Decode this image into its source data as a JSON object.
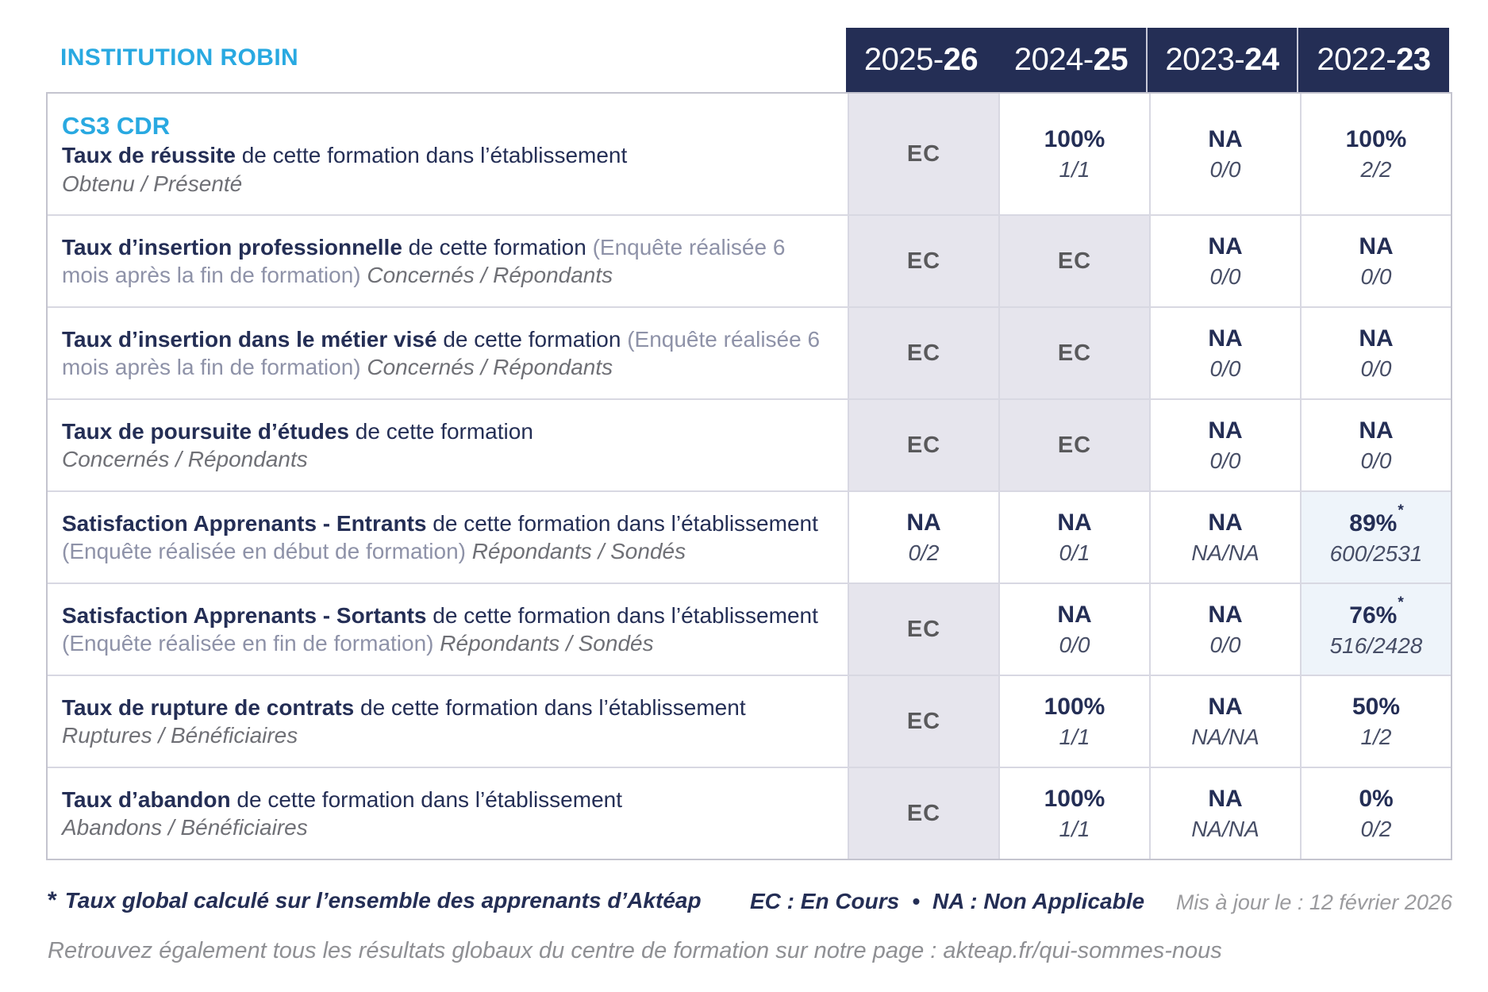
{
  "page": {
    "institution": "INSTITUTION ROBIN",
    "program": "CS3 CDR"
  },
  "header": {
    "years": [
      {
        "start": "2025-",
        "end": "26"
      },
      {
        "start": "2024-",
        "end": "25"
      },
      {
        "start": "2023-",
        "end": "24"
      },
      {
        "start": "2022-",
        "end": "23"
      }
    ]
  },
  "rows": [
    {
      "title": "Taux de réussite",
      "text": "de cette formation dans l’établissement",
      "subtitle": "Obtenu / Présenté",
      "cells": [
        {
          "main": "EC"
        },
        {
          "main": "100%",
          "sub": "1/1"
        },
        {
          "main": "NA",
          "sub": "0/0"
        },
        {
          "main": "100%",
          "sub": "2/2"
        }
      ]
    },
    {
      "title": "Taux d’insertion professionnelle",
      "text": "de cette formation",
      "note": "(Enquête réalisée 6 mois après la fin de formation)",
      "subtitle_inline": "Concernés / Répondants",
      "cells": [
        {
          "main": "EC"
        },
        {
          "main": "EC"
        },
        {
          "main": "NA",
          "sub": "0/0"
        },
        {
          "main": "NA",
          "sub": "0/0"
        }
      ]
    },
    {
      "title": "Taux d’insertion dans le métier visé",
      "text": "de cette formation",
      "note": "(Enquête réalisée 6 mois après la fin de formation)",
      "subtitle_inline": "Concernés / Répondants",
      "cells": [
        {
          "main": "EC"
        },
        {
          "main": "EC"
        },
        {
          "main": "NA",
          "sub": "0/0"
        },
        {
          "main": "NA",
          "sub": "0/0"
        }
      ]
    },
    {
      "title": "Taux de poursuite d’études",
      "text": "de cette formation",
      "subtitle": "Concernés / Répondants",
      "cells": [
        {
          "main": "EC"
        },
        {
          "main": "EC"
        },
        {
          "main": "NA",
          "sub": "0/0"
        },
        {
          "main": "NA",
          "sub": "0/0"
        }
      ]
    },
    {
      "title": "Satisfaction Apprenants - Entrants",
      "text": "de cette formation dans l’établissement",
      "note": "(Enquête réalisée en début de formation)",
      "subtitle_inline": "Répondants / Sondés",
      "cells": [
        {
          "main": "NA",
          "sub": "0/2"
        },
        {
          "main": "NA",
          "sub": "0/1"
        },
        {
          "main": "NA",
          "sub": "NA/NA"
        },
        {
          "main": "89%",
          "star": "*",
          "sub": "600/2531"
        }
      ]
    },
    {
      "title": "Satisfaction Apprenants - Sortants",
      "text": "de cette formation dans l’établissement",
      "note": "(Enquête réalisée en fin de formation)",
      "subtitle_inline": "Répondants / Sondés",
      "cells": [
        {
          "main": "EC"
        },
        {
          "main": "NA",
          "sub": "0/0"
        },
        {
          "main": "NA",
          "sub": "0/0"
        },
        {
          "main": "76%",
          "star": "*",
          "sub": "516/2428"
        }
      ]
    },
    {
      "title": "Taux de rupture de contrats",
      "text": "de cette formation dans l’établissement",
      "subtitle": "Ruptures / Bénéficiaires",
      "cells": [
        {
          "main": "EC"
        },
        {
          "main": "100%",
          "sub": "1/1"
        },
        {
          "main": "NA",
          "sub": "NA/NA"
        },
        {
          "main": "50%",
          "sub": "1/2"
        }
      ]
    },
    {
      "title": "Taux d’abandon",
      "text": "de cette formation dans l’établissement",
      "subtitle": "Abandons / Bénéficiaires",
      "cells": [
        {
          "main": "EC"
        },
        {
          "main": "100%",
          "sub": "1/1"
        },
        {
          "main": "NA",
          "sub": "NA/NA"
        },
        {
          "main": "0%",
          "sub": "0/2"
        }
      ]
    }
  ],
  "footer": {
    "star": "*",
    "note": "Taux global calculé sur l’ensemble des apprenants d’Aktéap",
    "legend_ec": "EC : En Cours",
    "legend_sep": "•",
    "legend_na": "NA : Non Applicable",
    "updated": "Mis à jour le : 12 février 2026",
    "bottom": "Retrouvez également tous les résultats globaux du centre de formation sur notre page : akteap.fr/qui-sommes-nous"
  },
  "colors": {
    "brand_blue": "#29a9e1",
    "navy": "#242e55",
    "ec_gray": "#59595b",
    "cell_lavender": "#e6e5ed",
    "cell_highlight": "#eef4fa",
    "border": "#d8d8e2"
  }
}
